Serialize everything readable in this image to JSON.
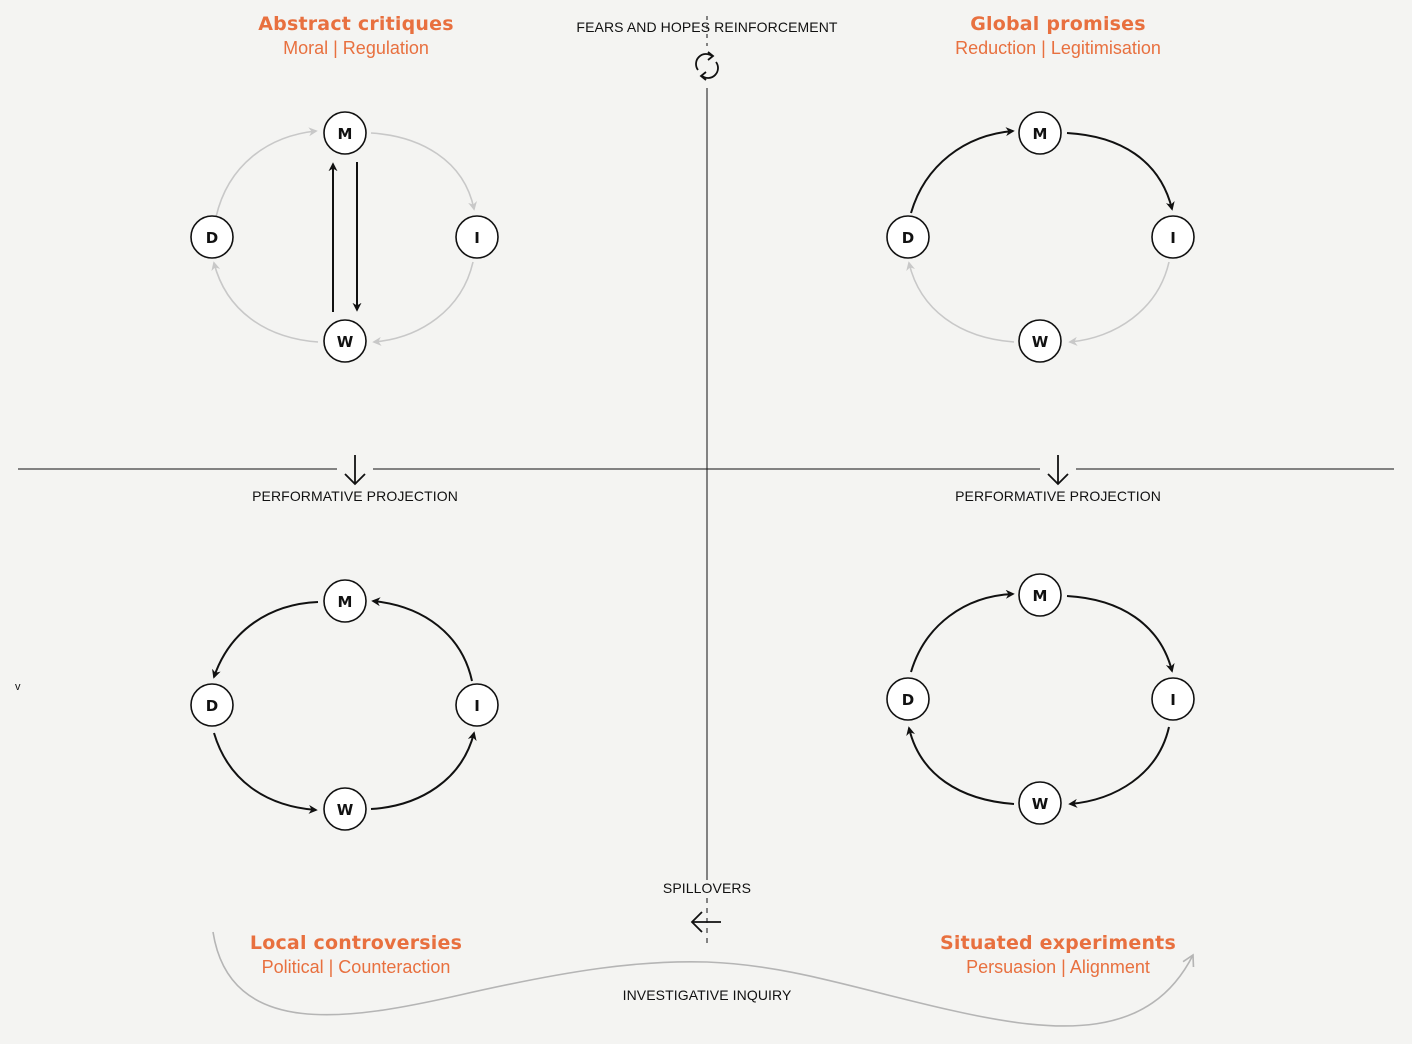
{
  "quadrants": {
    "top_left": {
      "title": "Abstract critiques",
      "subtitle": "Moral | Regulation"
    },
    "top_right": {
      "title": "Global promises",
      "subtitle": "Reduction | Legitimisation"
    },
    "bottom_left": {
      "title": "Local controversies",
      "subtitle": "Political | Counteraction"
    },
    "bottom_right": {
      "title": "Situated experiments",
      "subtitle": "Persuasion | Alignment"
    }
  },
  "axis_labels": {
    "top": "FEARS AND HOPES REINFORCEMENT",
    "left_mid": "PERFORMATIVE PROJECTION",
    "right_mid": "PERFORMATIVE PROJECTION",
    "bottom": "SPILLOVERS",
    "base": "INVESTIGATIVE INQUIRY"
  },
  "nodes": {
    "m": "M",
    "i": "I",
    "w": "W",
    "d": "D"
  },
  "stray_mark": "v",
  "colors": {
    "accent": "#e8703f",
    "ink": "#111111",
    "faded": "#c8c8c8",
    "background": "#f4f4f2"
  },
  "icons": {
    "top_axis": "cycle-refresh-icon",
    "mid_axis": "arrow-down-icon",
    "bottom_axis": "arrow-left-icon"
  }
}
